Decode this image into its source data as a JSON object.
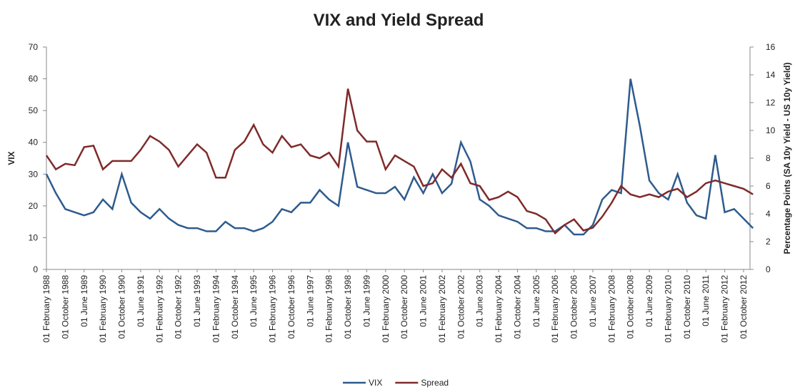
{
  "chart_data": {
    "type": "line",
    "title": "VIX and Yield Spread",
    "y_label": "VIX",
    "y2_label": "Percentage Points (SA 10y Yield - US 10y Yield)",
    "categories": [
      "01 February 1988",
      null,
      "01 October 1988",
      null,
      "01 June 1989",
      null,
      "01 February 1990",
      null,
      "01 October 1990",
      null,
      "01 June 1991",
      null,
      "01 February 1992",
      null,
      "01 October 1992",
      null,
      "01 June 1993",
      null,
      "01 February 1994",
      null,
      "01 October 1994",
      null,
      "01 June 1995",
      null,
      "01 February 1996",
      null,
      "01 October 1996",
      null,
      "01 June 1997",
      null,
      "01 February 1998",
      null,
      "01 October 1998",
      null,
      "01 June 1999",
      null,
      "01 February 2000",
      null,
      "01 October 2000",
      null,
      "01 June 2001",
      null,
      "01 February 2002",
      null,
      "01 October 2002",
      null,
      "01 June 2003",
      null,
      "01 February 2004",
      null,
      "01 October 2004",
      null,
      "01 June 2005",
      null,
      "01 February 2006",
      null,
      "01 October 2006",
      null,
      "01 June 2007",
      null,
      "01 February 2008",
      null,
      "01 October 2008",
      null,
      "01 June 2009",
      null,
      "01 February 2010",
      null,
      "01 October 2010",
      null,
      "01 June 2011",
      null,
      "01 February 2012",
      null,
      "01 October 2012",
      null
    ],
    "series": [
      {
        "name": "VIX",
        "color": "#2e5b8e",
        "values": [
          30,
          24,
          19,
          18,
          17,
          18,
          22,
          19,
          30,
          21,
          18,
          16,
          19,
          16,
          14,
          13,
          13,
          12,
          12,
          15,
          13,
          13,
          12,
          13,
          15,
          19,
          18,
          21,
          21,
          25,
          22,
          20,
          40,
          26,
          25,
          24,
          24,
          26,
          22,
          29,
          24,
          30,
          24,
          27,
          40,
          34,
          22,
          20,
          17,
          16,
          15,
          13,
          13,
          12,
          12,
          14,
          11,
          11,
          14,
          22,
          25,
          24,
          60,
          45,
          28,
          24,
          22,
          30,
          21,
          17,
          16,
          36,
          18,
          19,
          16,
          13
        ]
      },
      {
        "name": "Spread",
        "color": "#7f2a2a",
        "axis": "y2",
        "values": [
          8.2,
          7.2,
          7.6,
          7.5,
          8.8,
          8.9,
          7.2,
          7.8,
          7.8,
          7.8,
          8.6,
          9.6,
          9.2,
          8.6,
          7.4,
          8.2,
          9.0,
          8.4,
          6.6,
          6.6,
          8.6,
          9.2,
          10.4,
          9.0,
          8.4,
          9.6,
          8.8,
          9.0,
          8.2,
          8.0,
          8.4,
          7.4,
          13.0,
          10.0,
          9.2,
          9.2,
          7.2,
          8.2,
          7.8,
          7.4,
          6.0,
          6.2,
          7.2,
          6.6,
          7.6,
          6.2,
          6.0,
          5.0,
          5.2,
          5.6,
          5.2,
          4.2,
          4.0,
          3.6,
          2.6,
          3.2,
          3.6,
          2.8,
          3.0,
          3.8,
          4.8,
          6.0,
          5.4,
          5.2,
          5.4,
          5.2,
          5.6,
          5.8,
          5.2,
          5.6,
          6.2,
          6.4,
          6.2,
          6.0,
          5.8,
          5.4
        ]
      }
    ],
    "ylim": [
      0,
      70
    ],
    "yticks": [
      0,
      10,
      20,
      30,
      40,
      50,
      60,
      70
    ],
    "y2lim": [
      0,
      16
    ],
    "y2ticks": [
      0,
      2,
      4,
      6,
      8,
      10,
      12,
      14,
      16
    ],
    "grid": false,
    "legend": "bottom"
  }
}
